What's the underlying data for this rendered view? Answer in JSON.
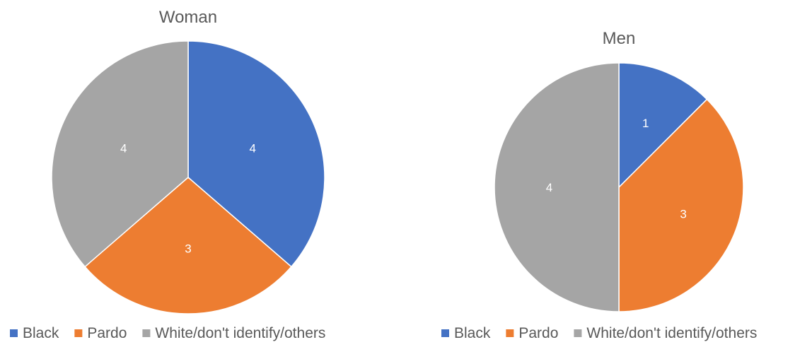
{
  "chart_data": [
    {
      "type": "pie",
      "title": "Woman",
      "categories": [
        "Black",
        "Pardo",
        "White/don't identify/others"
      ],
      "values": [
        4,
        3,
        4
      ],
      "colors": [
        "#4472C4",
        "#ED7D31",
        "#A5A5A5"
      ],
      "legend": "bottom"
    },
    {
      "type": "pie",
      "title": "Men",
      "categories": [
        "Black",
        "Pardo",
        "White/don't identify/others"
      ],
      "values": [
        1,
        3,
        4
      ],
      "colors": [
        "#4472C4",
        "#ED7D31",
        "#A5A5A5"
      ],
      "legend": "bottom"
    }
  ]
}
